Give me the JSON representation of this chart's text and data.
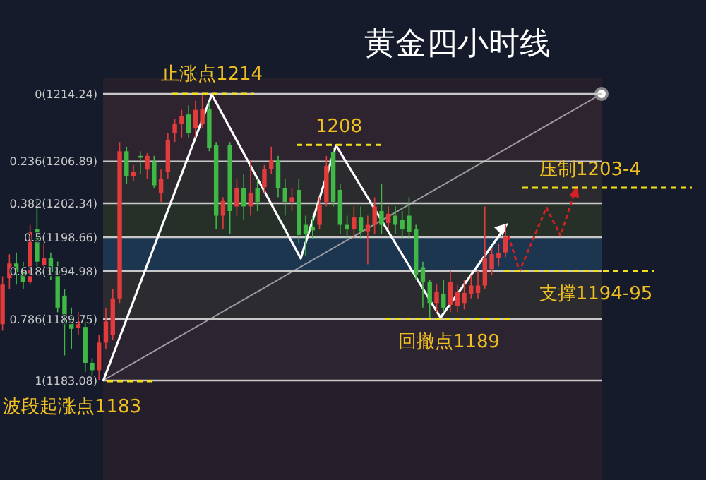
{
  "chart_data": {
    "type": "candlestick",
    "title": "黄金四小时线",
    "categories": [
      null,
      null,
      null,
      null,
      null,
      null,
      null,
      null,
      null,
      null,
      null,
      null,
      null,
      null,
      null,
      null,
      null,
      null,
      null,
      null,
      null,
      null,
      null,
      null,
      null,
      null,
      null,
      null,
      null,
      null,
      null,
      null,
      null,
      null,
      null,
      null,
      null,
      null,
      null,
      null,
      null,
      null,
      null,
      null,
      null,
      null,
      null,
      null,
      null,
      null,
      null,
      null,
      null,
      null,
      null,
      null,
      null,
      null,
      null,
      null,
      null,
      null,
      null,
      null,
      null,
      null,
      null,
      null,
      null,
      null,
      null,
      null,
      null,
      null
    ],
    "ohlc": [
      [
        1189.2,
        1194.4,
        1188.5,
        1193.5
      ],
      [
        1194.2,
        1196.8,
        1193,
        1195.8
      ],
      [
        1195.8,
        1197,
        1193.5,
        1194.9
      ],
      [
        1195,
        1196,
        1193,
        1193.8
      ],
      [
        1193.8,
        1200,
        1193.5,
        1199.2
      ],
      [
        1199.5,
        1203,
        1195,
        1196
      ],
      [
        1195.6,
        1198,
        1195,
        1196.4
      ],
      [
        1196.4,
        1197,
        1194,
        1194.9
      ],
      [
        1195,
        1196,
        1190.5,
        1191
      ],
      [
        1192.3,
        1193,
        1185.8,
        1189.2
      ],
      [
        1189.6,
        1191,
        1186.5,
        1188.7
      ],
      [
        1188.8,
        1190.5,
        1188,
        1189.5
      ],
      [
        1188.9,
        1189.5,
        1184,
        1185
      ],
      [
        1185,
        1185.5,
        1183.5,
        1184.2
      ],
      [
        1184.2,
        1188,
        1183.1,
        1187.2
      ],
      [
        1187.2,
        1191,
        1186.5,
        1189.5
      ],
      [
        1188,
        1193,
        1187.5,
        1192
      ],
      [
        1192,
        1209,
        1191.5,
        1208
      ],
      [
        1208,
        1208.5,
        1204.5,
        1205.3
      ],
      [
        1205.3,
        1206.5,
        1204.8,
        1205.8
      ],
      [
        1207.5,
        1208,
        1205.5,
        1207.3
      ],
      [
        1206,
        1207.8,
        1205,
        1207.5
      ],
      [
        1206.9,
        1207.5,
        1204,
        1204.3
      ],
      [
        1203.5,
        1206,
        1202.5,
        1205
      ],
      [
        1205.8,
        1210,
        1205,
        1209.2
      ],
      [
        1210,
        1211.5,
        1209,
        1211
      ],
      [
        1211,
        1212.5,
        1209.5,
        1211.8
      ],
      [
        1212,
        1213,
        1209.5,
        1210
      ],
      [
        1210.5,
        1213.5,
        1209.5,
        1212.5
      ],
      [
        1211,
        1214.24,
        1210.5,
        1212.6
      ],
      [
        1212.6,
        1213.3,
        1208,
        1208.4
      ],
      [
        1208.7,
        1209,
        1199.5,
        1201
      ],
      [
        1201,
        1203,
        1199.5,
        1202.6
      ],
      [
        1208.7,
        1209,
        1199,
        1201.5
      ],
      [
        1202,
        1205,
        1201,
        1204
      ],
      [
        1204,
        1205.5,
        1200.5,
        1202
      ],
      [
        1202,
        1207,
        1201,
        1203.5
      ],
      [
        1204,
        1205,
        1201.5,
        1202.5
      ],
      [
        1204.1,
        1206.5,
        1203.5,
        1206.1
      ],
      [
        1206.1,
        1208.5,
        1205.5,
        1207
      ],
      [
        1207,
        1207.5,
        1203,
        1204
      ],
      [
        1204,
        1205,
        1201,
        1202.5
      ],
      [
        1202.5,
        1204,
        1201.5,
        1203
      ],
      [
        1203.8,
        1205,
        1198,
        1198.9
      ],
      [
        1200,
        1201,
        1196.6,
        1199
      ],
      [
        1199.8,
        1201,
        1198.5,
        1199.4
      ],
      [
        1200,
        1203,
        1199.5,
        1202.2
      ],
      [
        1202.5,
        1207.5,
        1202,
        1206.4
      ],
      [
        1207.9,
        1208.4,
        1202,
        1202.5
      ],
      [
        1203.8,
        1204.5,
        1199,
        1200
      ],
      [
        1200,
        1201,
        1198.5,
        1199.5
      ],
      [
        1199.5,
        1202,
        1198.5,
        1200.8
      ],
      [
        1200.8,
        1202,
        1198.5,
        1199.3
      ],
      [
        1199.3,
        1201,
        1195.7,
        1200
      ],
      [
        1200,
        1203,
        1199,
        1202
      ],
      [
        1201.5,
        1204.5,
        1199,
        1200
      ],
      [
        1200.2,
        1202,
        1199.5,
        1201.2
      ],
      [
        1201,
        1202,
        1199,
        1200
      ],
      [
        1200.5,
        1201.5,
        1198.5,
        1199.5
      ],
      [
        1201,
        1203,
        1198.5,
        1199.2
      ],
      [
        1199.5,
        1200,
        1194,
        1194.6
      ],
      [
        1195.4,
        1196,
        1191,
        1193.8
      ],
      [
        1193.8,
        1194,
        1189.8,
        1191.5
      ],
      [
        1191.5,
        1193.5,
        1190.5,
        1192.7
      ],
      [
        1192.5,
        1194,
        1190.5,
        1191
      ],
      [
        1191.3,
        1195,
        1190.5,
        1193.8
      ],
      [
        1191.2,
        1193.5,
        1190.5,
        1192.7
      ],
      [
        1191.5,
        1194,
        1190.8,
        1192.6
      ],
      [
        1192.5,
        1194.5,
        1192,
        1193.4
      ],
      [
        1192.6,
        1195,
        1192,
        1193.4
      ],
      [
        1193.4,
        1202,
        1193,
        1196.4
      ],
      [
        1195.2,
        1197.5,
        1194.5,
        1196.8
      ],
      [
        1196.4,
        1198,
        1195.5,
        1196.9
      ],
      [
        1197,
        1200,
        1196.5,
        1198.7
      ]
    ],
    "ref_lines": [
      {
        "axis": "y",
        "value": 1214.24,
        "label": "0(1214.24)",
        "color": "#c8c8c8"
      },
      {
        "axis": "y",
        "value": 1206.89,
        "label": "0.236(1206.89)",
        "color": "#c8c8c8"
      },
      {
        "axis": "y",
        "value": 1202.34,
        "label": "0.382(1202.34)",
        "color": "#c8c8c8"
      },
      {
        "axis": "y",
        "value": 1198.66,
        "label": "0.5(1198.66)",
        "color": "#c8c8c8"
      },
      {
        "axis": "y",
        "value": 1194.98,
        "label": "0.618(1194.98)",
        "color": "#c8c8c8"
      },
      {
        "axis": "y",
        "value": 1189.75,
        "label": "0.786(1189.75)",
        "color": "#c8c8c8"
      },
      {
        "axis": "y",
        "value": 1183.08,
        "label": "1(1183.08)",
        "color": "#c8c8c8"
      }
    ],
    "bands": [
      {
        "axis": "y",
        "from": 1206.89,
        "to": 1214.24,
        "color": "#2e2430"
      },
      {
        "axis": "y",
        "from": 1202.34,
        "to": 1206.89,
        "color": "#2b2b2f"
      },
      {
        "axis": "y",
        "from": 1198.66,
        "to": 1202.34,
        "color": "#263029"
      },
      {
        "axis": "y",
        "from": 1194.98,
        "to": 1198.66,
        "color": "#1d3650"
      },
      {
        "axis": "y",
        "from": 1189.75,
        "to": 1194.98,
        "color": "#2b2b30"
      },
      {
        "axis": "y",
        "from": 1183.08,
        "to": 1189.75,
        "color": "#2d2431"
      }
    ],
    "annotations": [
      {
        "text": "止涨点1214",
        "y": 1214.24
      },
      {
        "text": "1208",
        "y": 1208.7
      },
      {
        "text": "回撤点1189",
        "y": 1189.75
      },
      "波段起涨点1183",
      "压制1203-4",
      {
        "text": "支撑1194-95",
        "y": 1194.98
      }
    ]
  }
}
